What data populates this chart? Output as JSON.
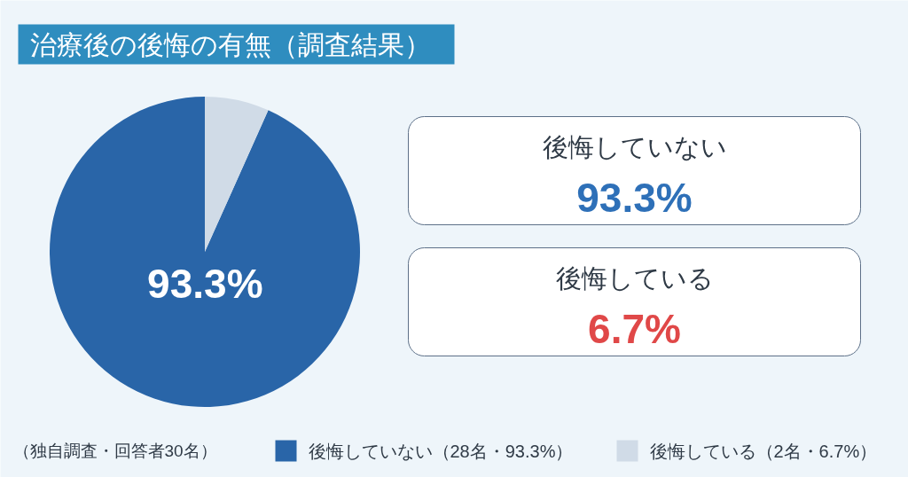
{
  "chart_data": [
    {
      "type": "pie",
      "title": "治療後の後悔の有無（調査結果）",
      "categories": [
        "後悔していない（28名・93.3%）",
        "後悔している（2名・6.7%）"
      ],
      "values": [
        93.3,
        6.7
      ],
      "colors": [
        "#2965a8",
        "#d0dbe7"
      ],
      "value_labels": [
        "93.3%",
        null
      ],
      "legend": "bottom",
      "annotations": [
        "（独自調査・回答者30名）"
      ]
    },
    {
      "type": "other",
      "categories": [
        "後悔していない",
        "後悔している"
      ],
      "value_labels": [
        "93.3%",
        "6.7%"
      ],
      "colors": [
        "#ffffff",
        "#ffffff"
      ]
    }
  ]
}
